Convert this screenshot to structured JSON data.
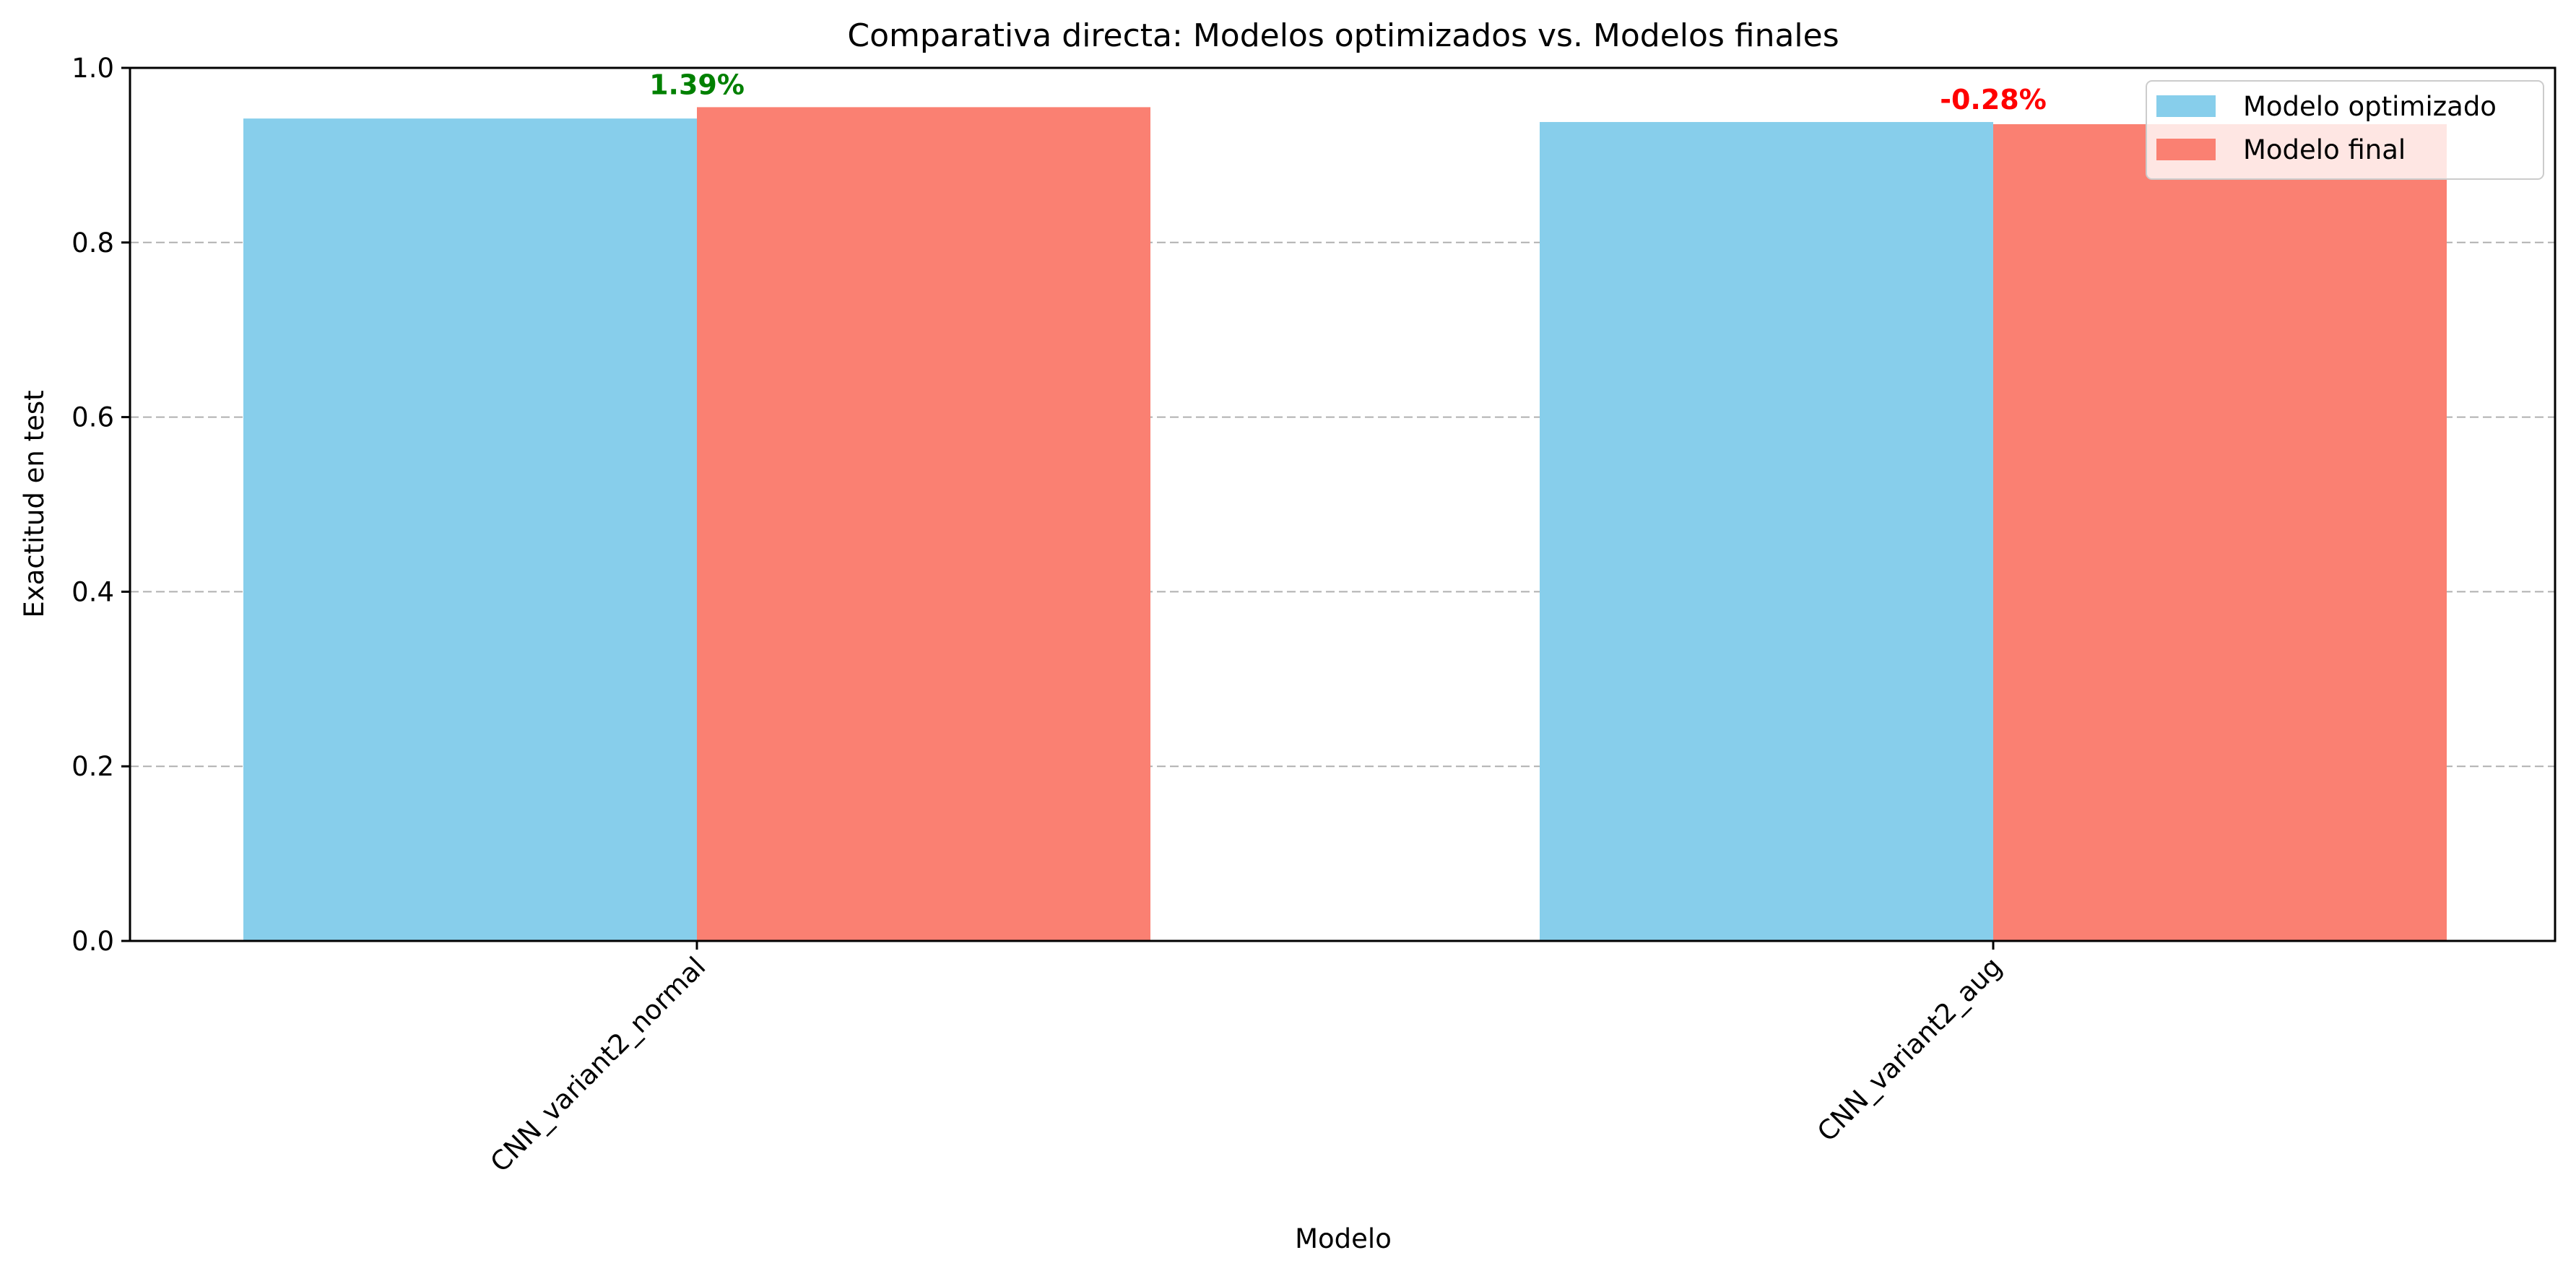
{
  "chart_data": {
    "type": "bar",
    "title": "Comparativa directa: Modelos optimizados vs. Modelos finales",
    "xlabel": "Modelo",
    "ylabel": "Exactitud en test",
    "ylim": [
      0,
      1.0
    ],
    "yticks": [
      "0.0",
      "0.2",
      "0.4",
      "0.6",
      "0.8",
      "1.0"
    ],
    "grid": "horizontal dashed",
    "legend_position": "top-right",
    "categories": [
      "CNN_variant2_normal",
      "CNN_variant2_aug"
    ],
    "series": [
      {
        "name": "Modelo optimizado",
        "color": "#87CEEB",
        "values": [
          0.942,
          0.938
        ]
      },
      {
        "name": "Modelo final",
        "color": "#FA8072",
        "values": [
          0.955,
          0.9355
        ]
      }
    ],
    "annotations": [
      {
        "category": "CNN_variant2_normal",
        "text": "1.39%",
        "color": "#008000"
      },
      {
        "category": "CNN_variant2_aug",
        "text": "-0.28%",
        "color": "#FF0000"
      }
    ]
  }
}
